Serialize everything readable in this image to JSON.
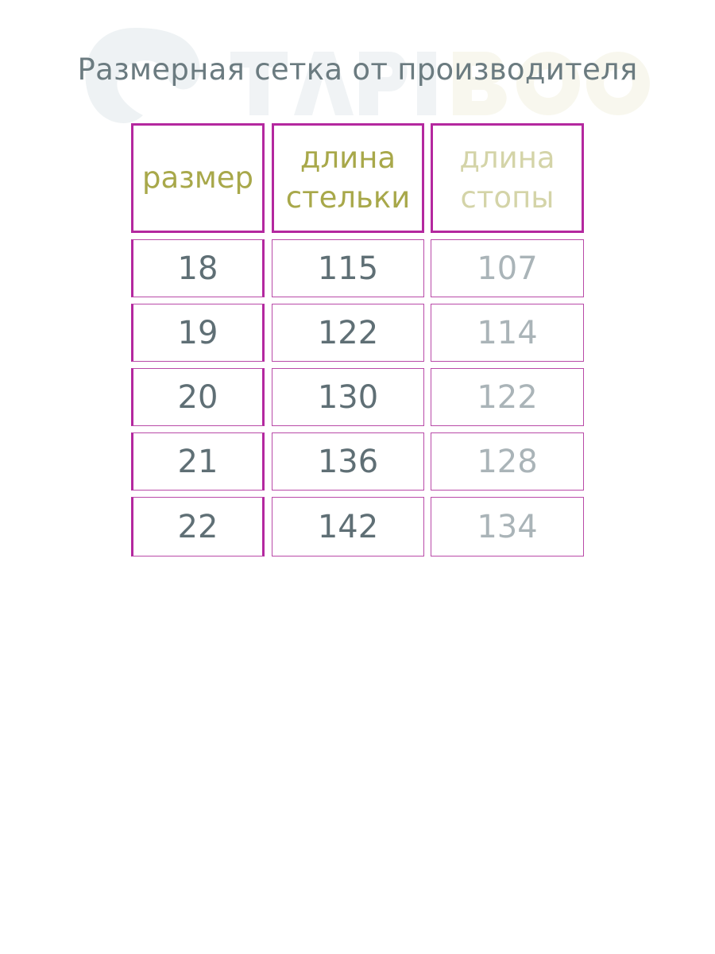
{
  "watermark": {
    "logo_text": "TAPIBOO"
  },
  "title": "Размерная сетка от производителя",
  "table": {
    "headers": [
      "размер",
      "длина стельки",
      "длина стопы"
    ],
    "rows": [
      [
        "18",
        "115",
        "107"
      ],
      [
        "19",
        "122",
        "114"
      ],
      [
        "20",
        "130",
        "122"
      ],
      [
        "21",
        "136",
        "128"
      ],
      [
        "22",
        "142",
        "134"
      ]
    ]
  },
  "colors": {
    "border": "#b4289f",
    "header_text": "#a8a84a",
    "header_text_light": "#d4d4a8",
    "value_text": "#5f6f75",
    "value_text_light": "#aab4b8"
  }
}
